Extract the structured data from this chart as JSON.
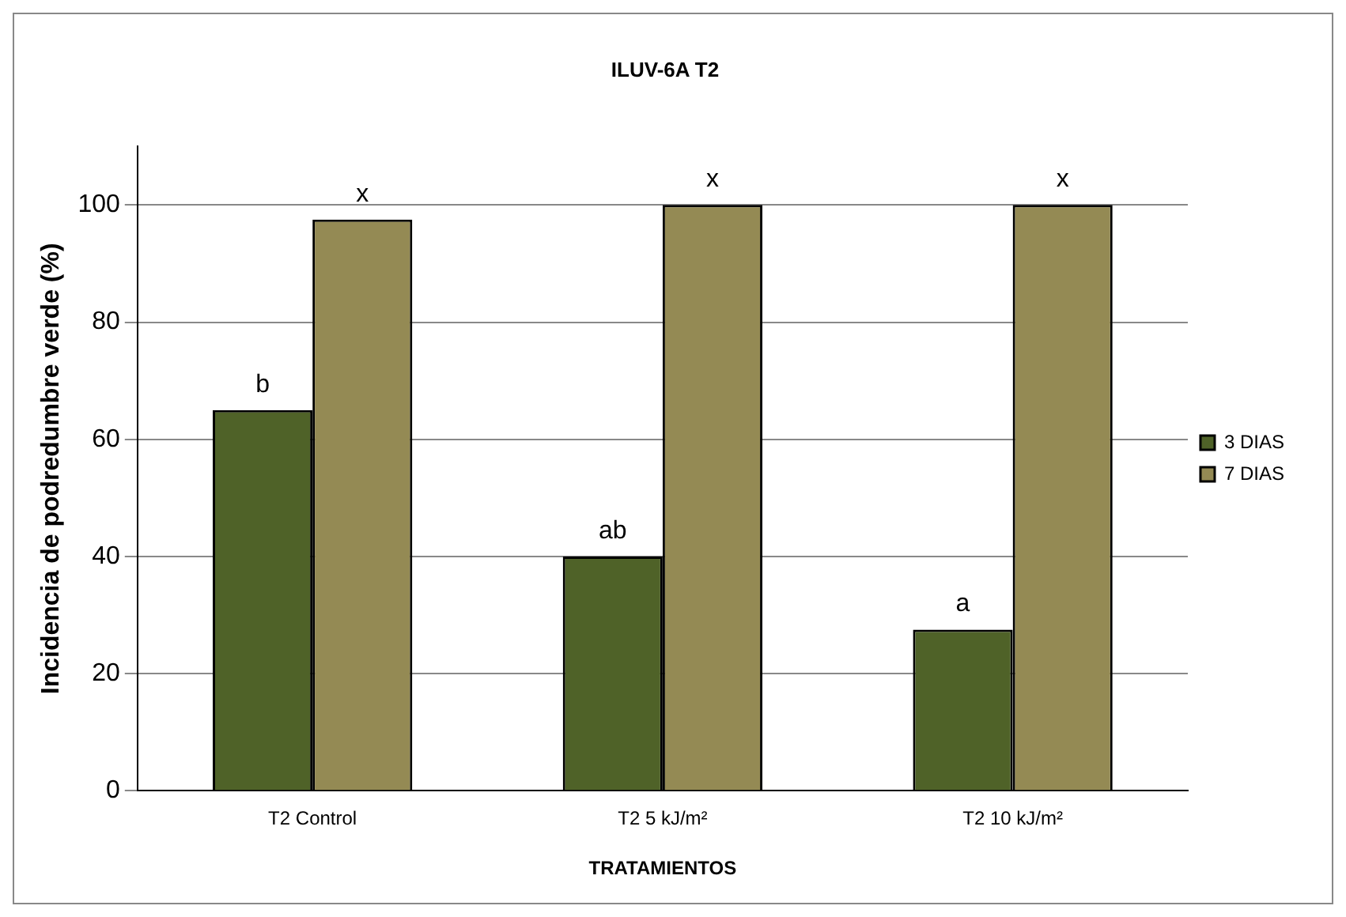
{
  "chart_data": {
    "type": "bar",
    "title": "ILUV-6A T2",
    "xlabel": "TRATAMIENTOS",
    "ylabel": "Incidencia de podredumbre verde (%)",
    "categories": [
      "T2 Control",
      "T2 5 kJ/m²",
      "T2 10 kJ/m²"
    ],
    "series": [
      {
        "name": "3 DIAS",
        "color": "#4f6228",
        "values": [
          65,
          40,
          27.5
        ]
      },
      {
        "name": "7 DIAS",
        "color": "#948a54",
        "values": [
          97.5,
          100,
          100
        ]
      }
    ],
    "ylim": [
      0,
      110
    ],
    "yticks": [
      0,
      20,
      40,
      60,
      80,
      100
    ],
    "grid": "y",
    "legend": "right",
    "annotations": [
      {
        "text": "b",
        "x": "T2 Control",
        "y": 65
      },
      {
        "text": "x",
        "x": "T2 Control",
        "y": 97.5
      },
      {
        "text": "ab",
        "x": "T2 5 kJ/m²",
        "y": 40
      },
      {
        "text": "x",
        "x": "T2 5 kJ/m²",
        "y": 100
      },
      {
        "text": "a",
        "x": "T2 10 kJ/m²",
        "y": 27.5
      },
      {
        "text": "x",
        "x": "T2 10 kJ/m²",
        "y": 100
      }
    ]
  }
}
